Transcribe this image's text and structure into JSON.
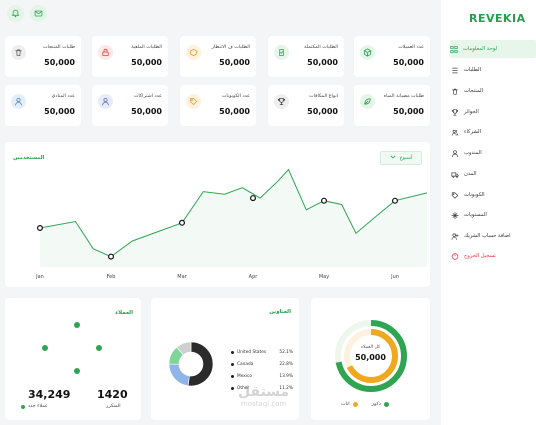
{
  "sidebar": {
    "logo": "REVEKIA",
    "items": [
      {
        "label": "لوحة المعلومات",
        "icon": "grid-icon",
        "active": true
      },
      {
        "label": "الطلبات",
        "icon": "list-icon"
      },
      {
        "label": "المنتجات",
        "icon": "trash-icon"
      },
      {
        "label": "الجوائز",
        "icon": "trophy-icon"
      },
      {
        "label": "الشركاء",
        "icon": "users-icon"
      },
      {
        "label": "المندوب",
        "icon": "person-icon"
      },
      {
        "label": "المدن",
        "icon": "truck-icon"
      },
      {
        "label": "الكوبونات",
        "icon": "tag-icon"
      },
      {
        "label": "المستويات",
        "icon": "levels-icon"
      },
      {
        "label": "اضافة حساب الشريك",
        "icon": "add-user-icon"
      },
      {
        "label": "تسجيل الخروج",
        "icon": "logout-icon",
        "logout": true
      }
    ]
  },
  "topbar": {
    "icons": [
      "bell-icon",
      "mail-icon"
    ]
  },
  "stats": [
    {
      "label": "عدد العميلات",
      "value": "50,000",
      "icon": "cube-icon",
      "color": "#e5f5e9",
      "icon_color": "#2fa552"
    },
    {
      "label": "الطلبات المكتملة",
      "value": "50,000",
      "icon": "check-icon",
      "color": "#e5f5e9",
      "icon_color": "#2fa552"
    },
    {
      "label": "الطلبات ف الانتظار",
      "value": "50,000",
      "icon": "box-icon",
      "color": "#fdf1df",
      "icon_color": "#f0a030"
    },
    {
      "label": "الطلبات الملغية",
      "value": "50,000",
      "icon": "lock-icon",
      "color": "#fde7e7",
      "icon_color": "#e2454a"
    },
    {
      "label": "طلبات المنتجات",
      "value": "50,000",
      "icon": "trash-icon",
      "color": "#eeeeee",
      "icon_color": "#666666"
    },
    {
      "label": "طلبات مصيانة المياه",
      "value": "50,000",
      "icon": "leaf-icon",
      "color": "#e5f5e9",
      "icon_color": "#2fa552"
    },
    {
      "label": "انواع المكافات",
      "value": "50,000",
      "icon": "trophy-icon",
      "color": "#eeeeee",
      "icon_color": "#444444"
    },
    {
      "label": "عدد الكوبونات",
      "value": "50,000",
      "icon": "tag-icon",
      "color": "#fdf1df",
      "icon_color": "#f0a030"
    },
    {
      "label": "عدد اشتراكات",
      "value": "50,000",
      "icon": "person-icon",
      "color": "#e8ecf7",
      "icon_color": "#6a78b8"
    },
    {
      "label": "عدد المنادي",
      "value": "50,000",
      "icon": "person-icon",
      "color": "#e3eef8",
      "icon_color": "#4b8fd0"
    }
  ],
  "line_chart": {
    "title": "المستخدمين",
    "dropdown": "أسبوع",
    "chart_data": {
      "type": "line",
      "categories": [
        "Jan",
        "Feb",
        "Mar",
        "Apr",
        "May",
        "Jun"
      ],
      "markers": [
        0,
        1,
        2,
        3,
        4,
        5
      ],
      "points": [
        {
          "x": 0.0,
          "y": 30
        },
        {
          "x": 0.5,
          "y": 35
        },
        {
          "x": 0.75,
          "y": 14
        },
        {
          "x": 1.0,
          "y": 8
        },
        {
          "x": 1.3,
          "y": 20
        },
        {
          "x": 1.7,
          "y": 28
        },
        {
          "x": 2.0,
          "y": 34
        },
        {
          "x": 2.3,
          "y": 58
        },
        {
          "x": 2.6,
          "y": 56
        },
        {
          "x": 2.85,
          "y": 61
        },
        {
          "x": 3.1,
          "y": 53
        },
        {
          "x": 3.35,
          "y": 66
        },
        {
          "x": 3.5,
          "y": 75
        },
        {
          "x": 3.75,
          "y": 44
        },
        {
          "x": 4.0,
          "y": 51
        },
        {
          "x": 4.25,
          "y": 48
        },
        {
          "x": 4.45,
          "y": 26
        },
        {
          "x": 4.8,
          "y": 42
        },
        {
          "x": 5.0,
          "y": 51
        },
        {
          "x": 5.3,
          "y": 55
        },
        {
          "x": 5.45,
          "y": 57
        }
      ],
      "grid": true
    },
    "chart_color": "#2fa552"
  },
  "clients_card": {
    "title": "العملاء",
    "new_clients_value": "34,249",
    "new_clients_label": "عملاء جدد",
    "center_value": "1420",
    "center_label": "المتكرر",
    "dot_color": "#2fa552"
  },
  "address_card": {
    "title": "العناوين",
    "chart_data": {
      "type": "pie",
      "categories": [
        "United States",
        "Canada",
        "Mexico",
        "Other"
      ],
      "values": [
        52.1,
        22.8,
        13.9,
        11.2
      ],
      "labels": [
        "52.1%",
        "22.8%",
        "13.9%",
        "11.2%"
      ],
      "colors": [
        "#2b2b2b",
        "#8fb5e8",
        "#7fd49a",
        "#cfcfcf"
      ]
    }
  },
  "total_card": {
    "center_label": "كل العملاء",
    "center_value": "50,000",
    "legend": [
      {
        "label": "ذكور",
        "color": "#2fa552"
      },
      {
        "label": "اناث",
        "color": "#f0a820"
      }
    ],
    "chart_data": {
      "type": "pie",
      "categories": [
        "ذكور",
        "اناث"
      ],
      "values": [
        72,
        68
      ]
    }
  },
  "watermark": {
    "text": "مستقل",
    "sub": "mostaql.com"
  }
}
